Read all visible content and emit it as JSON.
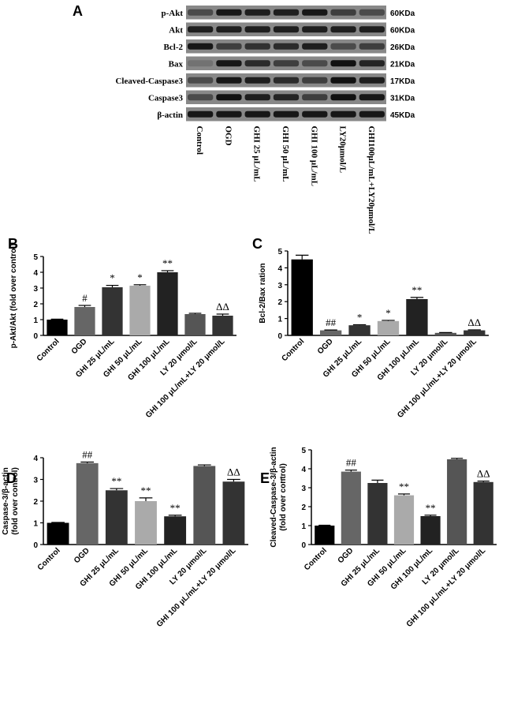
{
  "blot": {
    "panel": "A",
    "rows": [
      {
        "label": "p-Akt",
        "size": "60KDa"
      },
      {
        "label": "Akt",
        "size": "60KDa"
      },
      {
        "label": "Bcl-2",
        "size": "26KDa"
      },
      {
        "label": "Bax",
        "size": "21KDa"
      },
      {
        "label": "Cleaved-Caspase3",
        "size": "17KDa"
      },
      {
        "label": "Caspase3",
        "size": "31KDa"
      },
      {
        "label": "β-actin",
        "size": "45KDa"
      }
    ],
    "lanes": [
      "Control",
      "OGD",
      "GHI 25 μL/mL",
      "GHI 50 μL/mL",
      "GHI 100 μL/mL",
      "LY20μmol/L",
      "GHI100μL/mL+LY20μmol/L"
    ]
  },
  "chart_data": [
    {
      "type": "bar",
      "panel": "B",
      "ylabel": [
        "p-Akt/Akt  (fold over control)"
      ],
      "categories": [
        "Control",
        "OGD",
        "GHI 25 μL/mL",
        "GHI 50 μL/mL",
        "GHI 100 μL/mL",
        "LY 20 μmol/L",
        "GHI 100 μL/mL+LY 20 μmol/L"
      ],
      "values": [
        1.0,
        1.8,
        3.05,
        3.15,
        4.0,
        1.35,
        1.25
      ],
      "errors": [
        0.03,
        0.1,
        0.12,
        0.06,
        0.1,
        0.05,
        0.1
      ],
      "annotations": [
        null,
        "#",
        "*",
        "*",
        "**",
        null,
        "ΔΔ"
      ],
      "colors": [
        "#000000",
        "#666666",
        "#333333",
        "#aaaaaa",
        "#222222",
        "#555555",
        "#333333"
      ],
      "ylim": [
        0,
        5
      ],
      "yticks": [
        0,
        1,
        2,
        3,
        4,
        5
      ]
    },
    {
      "type": "bar",
      "panel": "C",
      "ylabel": [
        "Bcl-2/Bax ration"
      ],
      "categories": [
        "Control",
        "OGD",
        "GHI 25 μL/mL",
        "GHI 50 μL/mL",
        "GHI 100 μL/mL",
        "LY 20 μmol/L",
        "GHI 100 μL/mL+LY 20 μmol/L"
      ],
      "values": [
        4.5,
        0.3,
        0.6,
        0.85,
        2.15,
        0.15,
        0.3
      ],
      "errors": [
        0.25,
        0.02,
        0.03,
        0.04,
        0.1,
        0.02,
        0.03
      ],
      "annotations": [
        null,
        "##",
        "*",
        "*",
        "**",
        null,
        "ΔΔ"
      ],
      "colors": [
        "#000000",
        "#666666",
        "#333333",
        "#aaaaaa",
        "#222222",
        "#555555",
        "#333333"
      ],
      "ylim": [
        0,
        5
      ],
      "yticks": [
        0,
        1,
        2,
        3,
        4,
        5
      ]
    },
    {
      "type": "bar",
      "panel": "D",
      "ylabel": [
        "Caspase-3/β-actin",
        "(fold over control)"
      ],
      "categories": [
        "Control",
        "OGD",
        "GHI 25 μL/mL",
        "GHI 50 μL/mL",
        "GHI 100 μL/mL",
        "LY 20 μmol/L",
        "GHI 100 μL/mL+LY 20 μmol/L"
      ],
      "values": [
        1.0,
        3.75,
        2.5,
        2.0,
        1.3,
        3.62,
        2.9
      ],
      "errors": [
        0.02,
        0.05,
        0.08,
        0.15,
        0.05,
        0.05,
        0.1
      ],
      "annotations": [
        null,
        "##",
        "**",
        "**",
        "**",
        null,
        "ΔΔ"
      ],
      "colors": [
        "#000000",
        "#666666",
        "#333333",
        "#aaaaaa",
        "#222222",
        "#555555",
        "#333333"
      ],
      "ylim": [
        0,
        4
      ],
      "yticks": [
        0,
        1,
        2,
        3,
        4
      ]
    },
    {
      "type": "bar",
      "panel": "E",
      "note": ":",
      "ylabel": [
        "Cleaved-Caspase-3/β-actin",
        "(fold over control)"
      ],
      "categories": [
        "Control",
        "OGD",
        "GHI 25 μL/mL",
        "GHI 50 μL/mL",
        "GHI 100 μL/mL",
        "LY 20 μmol/L",
        "GHI 100 μL/mL+LY 20 μmol/L"
      ],
      "values": [
        1.0,
        3.85,
        3.25,
        2.6,
        1.5,
        4.5,
        3.3
      ],
      "errors": [
        0.02,
        0.08,
        0.15,
        0.07,
        0.05,
        0.05,
        0.05
      ],
      "annotations": [
        null,
        "##",
        null,
        "**",
        "**",
        null,
        "ΔΔ"
      ],
      "colors": [
        "#000000",
        "#666666",
        "#333333",
        "#aaaaaa",
        "#222222",
        "#555555",
        "#333333"
      ],
      "ylim": [
        0,
        5
      ],
      "yticks": [
        0,
        1,
        2,
        3,
        4,
        5
      ]
    }
  ]
}
